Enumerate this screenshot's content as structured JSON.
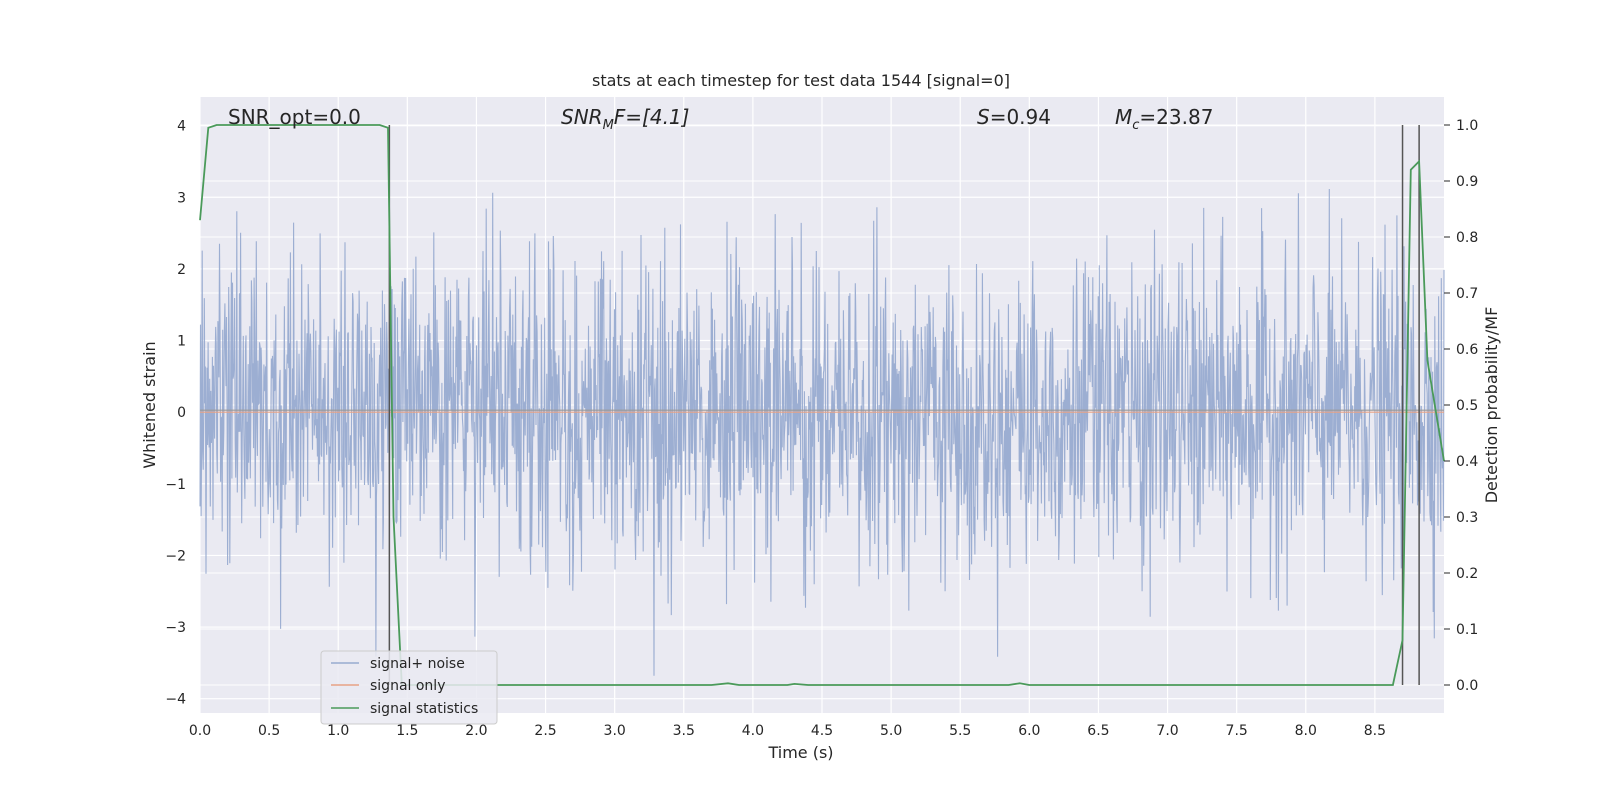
{
  "chart_data": {
    "type": "line",
    "title": "stats at each timestep for test data 1544 [signal=0]",
    "xlabel": "Time (s)",
    "ylabel": "Whitened strain",
    "ylabel_right": "Detection probability/MF",
    "xlim": [
      0.0,
      9.0
    ],
    "ylim": [
      -4.2,
      4.4
    ],
    "ylim_right": [
      -0.05,
      1.05
    ],
    "x_ticks": [
      "0.0",
      "0.5",
      "1.0",
      "1.5",
      "2.0",
      "2.5",
      "3.0",
      "3.5",
      "4.0",
      "4.5",
      "5.0",
      "5.5",
      "6.0",
      "6.5",
      "7.0",
      "7.5",
      "8.0",
      "8.5"
    ],
    "y_ticks": [
      "4",
      "3",
      "2",
      "1",
      "0",
      "−1",
      "−2",
      "−3",
      "−4"
    ],
    "y_ticks_right": [
      "1.0",
      "0.9",
      "0.8",
      "0.7",
      "0.6",
      "0.5",
      "0.4",
      "0.3",
      "0.2",
      "0.1",
      "0.0"
    ],
    "grid": true,
    "legend_position": "lower-left",
    "annotations": {
      "snr_opt": "SNR_opt=0.0",
      "snr_mf_base": "SNR",
      "snr_mf_sub": "M",
      "snr_mf_rest": "F=[4.1]",
      "s_base": "S",
      "s_rest": "=0.94",
      "mc_base": "M",
      "mc_sub": "c",
      "mc_rest": "=23.87"
    },
    "series": [
      {
        "name": "signal+ noise",
        "color": "#98abd0",
        "description_values": "noise-like strain, roughly ±2.5 with peaks near ±4"
      },
      {
        "name": "signal only",
        "color": "#e8a284",
        "x": [
          0.0,
          9.0
        ],
        "y": [
          0.0,
          0.0
        ]
      },
      {
        "name": "signal statistics",
        "color": "#4a9a5a",
        "axis": "right",
        "x": [
          0.0,
          0.06,
          0.12,
          1.3,
          1.36,
          1.4,
          1.46,
          3.7,
          3.82,
          3.9,
          4.25,
          4.3,
          4.4,
          5.85,
          5.93,
          6.0,
          8.63,
          8.7,
          8.76,
          8.82,
          8.88,
          9.0
        ],
        "y": [
          0.83,
          0.995,
          1.0,
          1.0,
          0.995,
          0.3,
          0.0,
          0.0,
          0.003,
          0.0,
          0.0,
          0.002,
          0.0,
          0.0,
          0.003,
          0.0,
          0.0,
          0.08,
          0.92,
          0.935,
          0.58,
          0.4
        ]
      }
    ],
    "vertical_lines_x": [
      1.37,
      8.7,
      8.82
    ]
  },
  "legend": {
    "items": [
      {
        "label": "signal+ noise",
        "color": "#98abd0"
      },
      {
        "label": "signal only",
        "color": "#e8a284"
      },
      {
        "label": "signal statistics",
        "color": "#4a9a5a"
      }
    ]
  },
  "colors": {
    "plot_bg": "#eaeaf2",
    "grid": "#ffffff",
    "vline": "#555555"
  }
}
